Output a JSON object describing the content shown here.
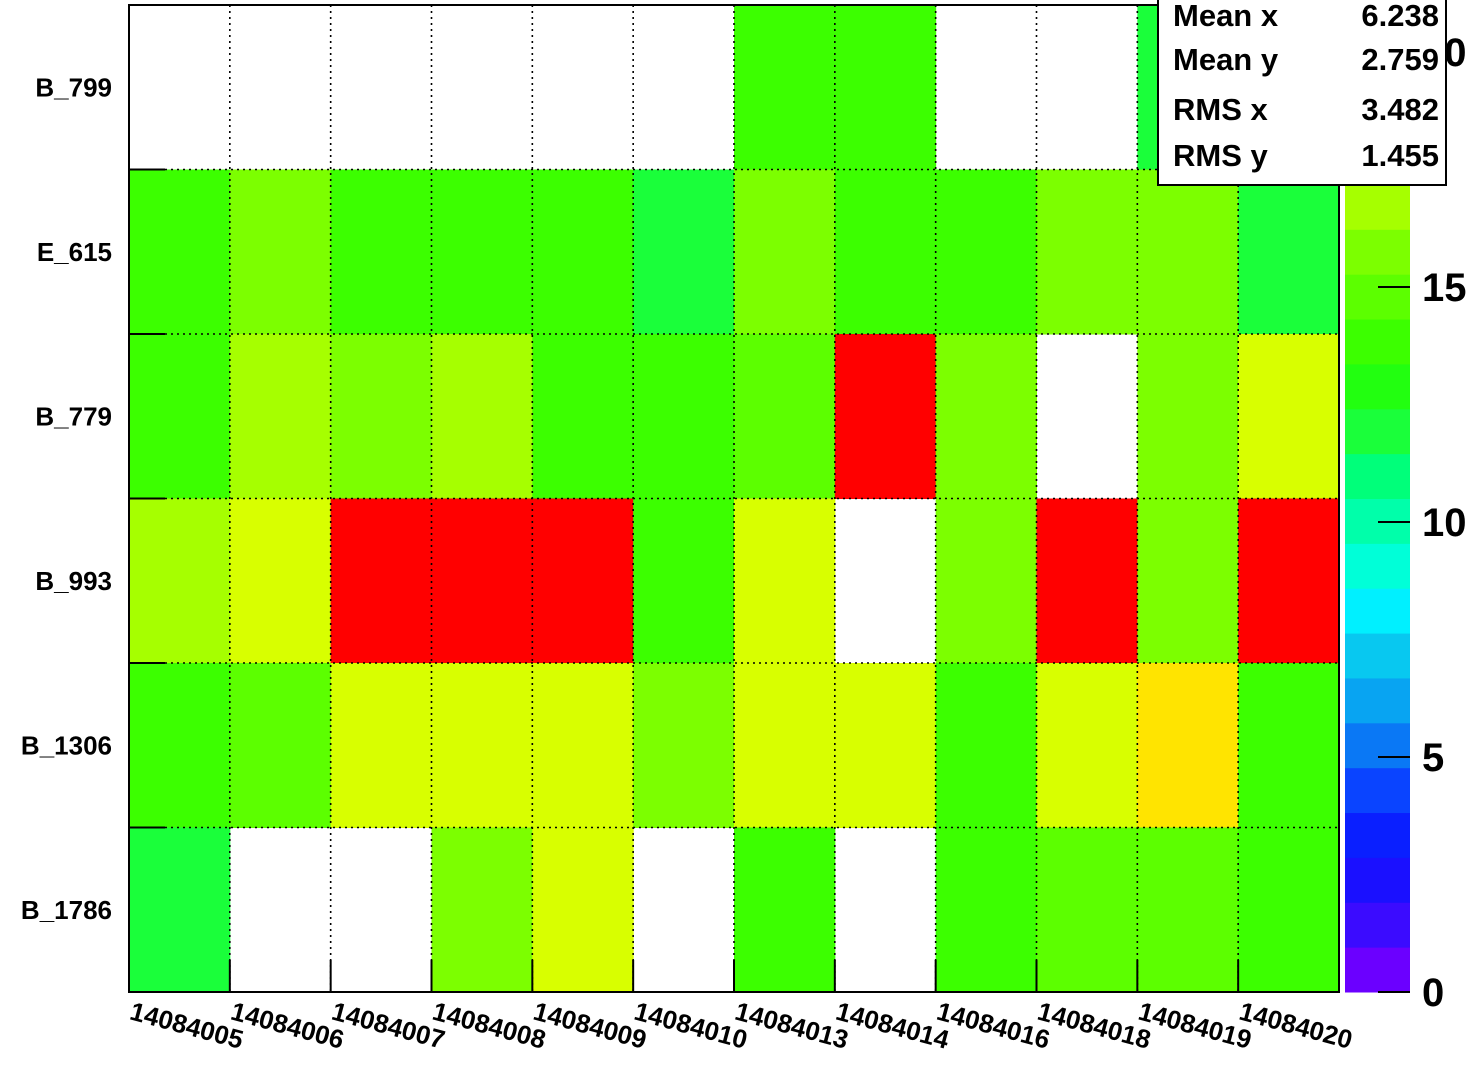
{
  "chart_data": {
    "type": "heatmap",
    "x_categories": [
      "14084005",
      "14084006",
      "14084007",
      "14084008",
      "14084009",
      "14084010",
      "14084013",
      "14084014",
      "14084016",
      "14084018",
      "14084019",
      "14084020"
    ],
    "y_categories": [
      "B_799",
      "E_615",
      "B_779",
      "B_993",
      "B_1306",
      "B_1786"
    ],
    "values": [
      [
        null,
        null,
        null,
        null,
        null,
        null,
        14,
        14,
        null,
        null,
        12,
        null
      ],
      [
        14,
        16,
        14,
        14,
        14,
        12,
        16,
        14,
        14,
        16,
        16,
        12
      ],
      [
        14,
        17,
        16,
        17,
        14,
        14,
        15,
        21,
        16,
        null,
        16,
        18
      ],
      [
        17,
        18,
        21,
        21,
        24,
        14,
        18,
        null,
        16,
        21,
        16,
        21
      ],
      [
        14,
        15,
        18,
        18,
        18,
        16,
        18,
        18,
        14,
        18,
        19,
        14
      ],
      [
        12,
        null,
        null,
        16,
        18,
        null,
        14,
        null,
        14,
        15,
        15,
        14
      ]
    ],
    "zlim": [
      0,
      21
    ],
    "z_ticks": [
      "0",
      "5",
      "10",
      "15",
      "20"
    ],
    "grid": true,
    "palette": [
      "#6b00ff",
      "#3b0bff",
      "#1a10ff",
      "#0a1fff",
      "#0a44ff",
      "#0a78f5",
      "#08a4f2",
      "#08c8f0",
      "#00f0ff",
      "#00ffd8",
      "#00ffaa",
      "#00ff7a",
      "#1aff3a",
      "#22ff10",
      "#3cff00",
      "#5cff00",
      "#7cff00",
      "#a6ff00",
      "#d8ff00",
      "#ffe400",
      "#ffa500",
      "#ff0000"
    ]
  },
  "stats": [
    {
      "label": "Mean x",
      "value": "6.238"
    },
    {
      "label": "Mean y",
      "value": "2.759"
    },
    {
      "label": "RMS x",
      "value": "3.482"
    },
    {
      "label": "RMS y",
      "value": "1.455"
    }
  ]
}
